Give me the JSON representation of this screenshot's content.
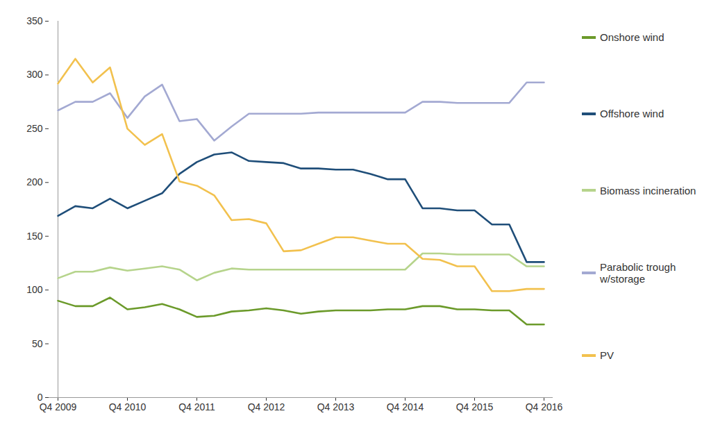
{
  "chart_data": {
    "type": "line",
    "categories": [
      "Q4 2009",
      null,
      null,
      null,
      "Q4 2010",
      null,
      null,
      null,
      "Q4 2011",
      null,
      null,
      null,
      "Q4 2012",
      null,
      null,
      null,
      "Q4 2013",
      null,
      null,
      null,
      "Q4 2014",
      null,
      null,
      null,
      "Q4 2015",
      null,
      null,
      null,
      "Q4 2016"
    ],
    "series": [
      {
        "name": "Onshore wind",
        "color": "#6b9a2a",
        "values": [
          90,
          85,
          85,
          93,
          82,
          84,
          87,
          82,
          75,
          76,
          80,
          81,
          83,
          81,
          78,
          80,
          81,
          81,
          81,
          82,
          82,
          85,
          85,
          82,
          82,
          81,
          81,
          68,
          68
        ]
      },
      {
        "name": "Offshore wind",
        "color": "#1f4e79",
        "values": [
          169,
          178,
          176,
          185,
          176,
          183,
          190,
          208,
          219,
          226,
          228,
          220,
          219,
          218,
          213,
          213,
          212,
          212,
          208,
          203,
          203,
          176,
          176,
          174,
          174,
          161,
          161,
          126,
          126
        ]
      },
      {
        "name": "Biomass incineration",
        "color": "#b6d48c",
        "values": [
          111,
          117,
          117,
          121,
          118,
          120,
          122,
          119,
          109,
          116,
          120,
          119,
          119,
          119,
          119,
          119,
          119,
          119,
          119,
          119,
          119,
          134,
          134,
          133,
          133,
          133,
          133,
          122,
          122
        ]
      },
      {
        "name": "Parabolic trough w/storage",
        "color": "#a3a9d2",
        "values": [
          267,
          275,
          275,
          283,
          260,
          280,
          291,
          257,
          259,
          239,
          252,
          264,
          264,
          264,
          264,
          265,
          265,
          265,
          265,
          265,
          265,
          275,
          275,
          274,
          274,
          274,
          274,
          293,
          293
        ]
      },
      {
        "name": "PV",
        "color": "#f2c14e",
        "values": [
          292,
          315,
          293,
          307,
          250,
          235,
          245,
          201,
          197,
          188,
          165,
          166,
          162,
          136,
          137,
          143,
          149,
          149,
          146,
          143,
          143,
          129,
          128,
          122,
          122,
          99,
          99,
          101,
          101
        ]
      }
    ],
    "ylim": [
      0,
      350
    ],
    "yticks": [
      0,
      50,
      100,
      150,
      200,
      250,
      300,
      350
    ],
    "grid": false,
    "legend": "right"
  }
}
